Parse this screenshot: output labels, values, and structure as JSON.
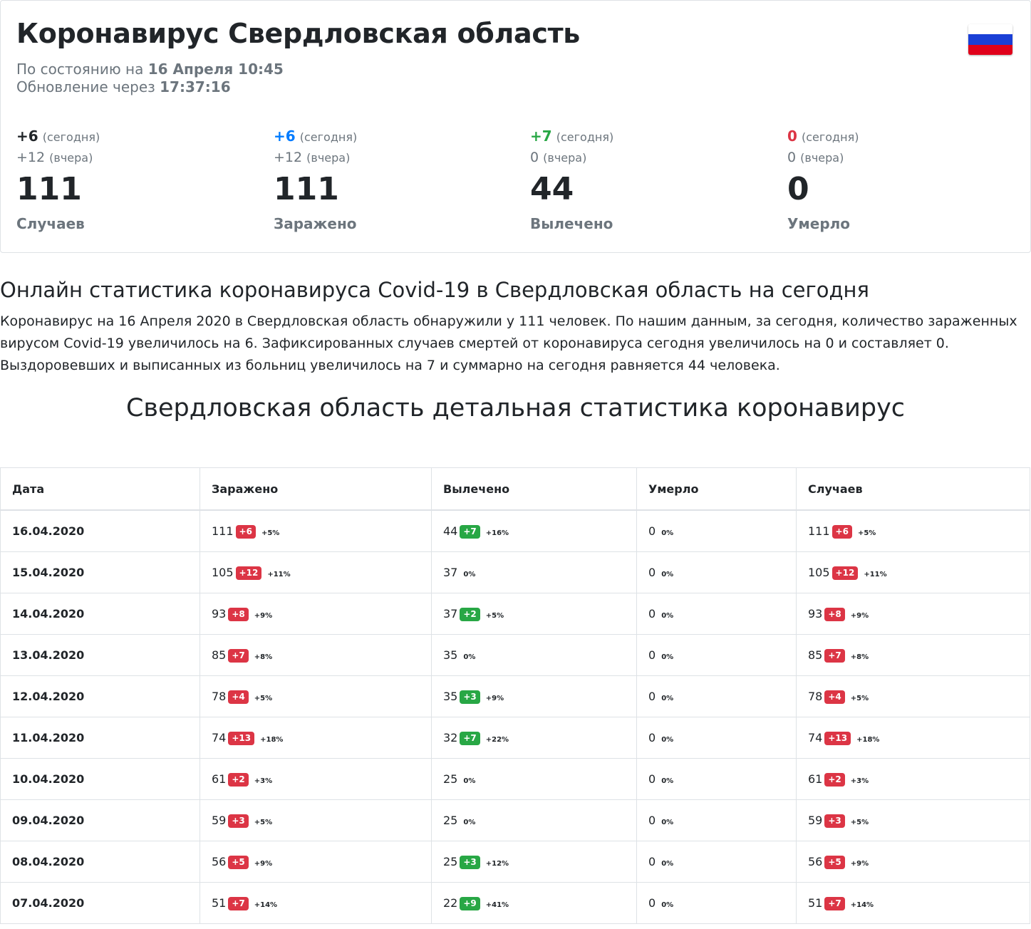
{
  "header": {
    "title": "Коронавирус Свердловская область",
    "status_prefix": "По состоянию на",
    "status_date": "16 Апреля 10:45",
    "update_prefix": "Обновление через",
    "update_time": "17:37:16",
    "flag_colors": [
      "#ffffff",
      "#1a3fd6",
      "#e0001a"
    ]
  },
  "stats": [
    {
      "today": "+6",
      "today_label": "(сегодня)",
      "yesterday": "+12",
      "yesterday_label": "(вчера)",
      "total": "111",
      "label": "Случаев",
      "color": "#212529"
    },
    {
      "today": "+6",
      "today_label": "(сегодня)",
      "yesterday": "+12",
      "yesterday_label": "(вчера)",
      "total": "111",
      "label": "Заражено",
      "color": "#007bff"
    },
    {
      "today": "+7",
      "today_label": "(сегодня)",
      "yesterday": "0",
      "yesterday_label": "(вчера)",
      "total": "44",
      "label": "Вылечено",
      "color": "#28a745"
    },
    {
      "today": "0",
      "today_label": "(сегодня)",
      "yesterday": "0",
      "yesterday_label": "(вчера)",
      "total": "0",
      "label": "Умерло",
      "color": "#dc3545"
    }
  ],
  "article": {
    "heading": "Онлайн статистика коронавируса Covid-19 в Свердловская область на сегодня",
    "paragraph": "Коронавирус на 16 Апреля 2020 в Свердловская область обнаружили у 111 человек. По нашим данным, за сегодня, количество зараженных вирусом Covid-19 увеличилось на 6. Зафиксированных случаев смертей от коронавируса сегодня увеличилось на 0 и составляет 0. Выздоровевших и выписанных из больниц увеличилось на 7 и суммарно на сегодня равняется 44 человека.",
    "detail_heading": "Свердловская область детальная статистика коронавирус"
  },
  "table": {
    "columns": [
      "Дата",
      "Заражено",
      "Вылечено",
      "Умерло",
      "Случаев"
    ],
    "rows": [
      {
        "date": "16.04.2020",
        "infected": {
          "v": "111",
          "d": "+6",
          "p": "+5%"
        },
        "recovered": {
          "v": "44",
          "d": "+7",
          "p": "+16%"
        },
        "died": {
          "v": "0",
          "d": "",
          "p": "0%"
        },
        "cases": {
          "v": "111",
          "d": "+6",
          "p": "+5%"
        }
      },
      {
        "date": "15.04.2020",
        "infected": {
          "v": "105",
          "d": "+12",
          "p": "+11%"
        },
        "recovered": {
          "v": "37",
          "d": "",
          "p": "0%"
        },
        "died": {
          "v": "0",
          "d": "",
          "p": "0%"
        },
        "cases": {
          "v": "105",
          "d": "+12",
          "p": "+11%"
        }
      },
      {
        "date": "14.04.2020",
        "infected": {
          "v": "93",
          "d": "+8",
          "p": "+9%"
        },
        "recovered": {
          "v": "37",
          "d": "+2",
          "p": "+5%"
        },
        "died": {
          "v": "0",
          "d": "",
          "p": "0%"
        },
        "cases": {
          "v": "93",
          "d": "+8",
          "p": "+9%"
        }
      },
      {
        "date": "13.04.2020",
        "infected": {
          "v": "85",
          "d": "+7",
          "p": "+8%"
        },
        "recovered": {
          "v": "35",
          "d": "",
          "p": "0%"
        },
        "died": {
          "v": "0",
          "d": "",
          "p": "0%"
        },
        "cases": {
          "v": "85",
          "d": "+7",
          "p": "+8%"
        }
      },
      {
        "date": "12.04.2020",
        "infected": {
          "v": "78",
          "d": "+4",
          "p": "+5%"
        },
        "recovered": {
          "v": "35",
          "d": "+3",
          "p": "+9%"
        },
        "died": {
          "v": "0",
          "d": "",
          "p": "0%"
        },
        "cases": {
          "v": "78",
          "d": "+4",
          "p": "+5%"
        }
      },
      {
        "date": "11.04.2020",
        "infected": {
          "v": "74",
          "d": "+13",
          "p": "+18%"
        },
        "recovered": {
          "v": "32",
          "d": "+7",
          "p": "+22%"
        },
        "died": {
          "v": "0",
          "d": "",
          "p": "0%"
        },
        "cases": {
          "v": "74",
          "d": "+13",
          "p": "+18%"
        }
      },
      {
        "date": "10.04.2020",
        "infected": {
          "v": "61",
          "d": "+2",
          "p": "+3%"
        },
        "recovered": {
          "v": "25",
          "d": "",
          "p": "0%"
        },
        "died": {
          "v": "0",
          "d": "",
          "p": "0%"
        },
        "cases": {
          "v": "61",
          "d": "+2",
          "p": "+3%"
        }
      },
      {
        "date": "09.04.2020",
        "infected": {
          "v": "59",
          "d": "+3",
          "p": "+5%"
        },
        "recovered": {
          "v": "25",
          "d": "",
          "p": "0%"
        },
        "died": {
          "v": "0",
          "d": "",
          "p": "0%"
        },
        "cases": {
          "v": "59",
          "d": "+3",
          "p": "+5%"
        }
      },
      {
        "date": "08.04.2020",
        "infected": {
          "v": "56",
          "d": "+5",
          "p": "+9%"
        },
        "recovered": {
          "v": "25",
          "d": "+3",
          "p": "+12%"
        },
        "died": {
          "v": "0",
          "d": "",
          "p": "0%"
        },
        "cases": {
          "v": "56",
          "d": "+5",
          "p": "+9%"
        }
      },
      {
        "date": "07.04.2020",
        "infected": {
          "v": "51",
          "d": "+7",
          "p": "+14%"
        },
        "recovered": {
          "v": "22",
          "d": "+9",
          "p": "+41%"
        },
        "died": {
          "v": "0",
          "d": "",
          "p": "0%"
        },
        "cases": {
          "v": "51",
          "d": "+7",
          "p": "+14%"
        }
      }
    ]
  },
  "colors": {
    "badge_red": "#dc3545",
    "badge_green": "#28a745",
    "muted": "#6c757d",
    "text": "#212529"
  }
}
